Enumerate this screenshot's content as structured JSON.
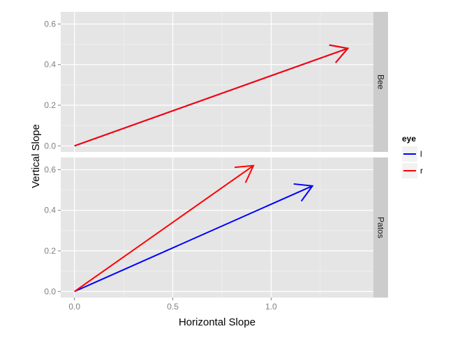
{
  "chart_data": {
    "type": "line",
    "subtype": "vector-arrows",
    "xlabel": "Horizontal Slope",
    "ylabel": "Vertical Slope",
    "xlim": [
      -0.07,
      1.52
    ],
    "ylim": [
      -0.03,
      0.66
    ],
    "x_ticks": [
      0.0,
      0.5,
      1.0
    ],
    "x_tick_labels": [
      "0.0",
      "0.5",
      "1.0"
    ],
    "y_ticks": [
      0.0,
      0.2,
      0.4,
      0.6
    ],
    "y_tick_labels": [
      "0.0",
      "0.2",
      "0.4",
      "0.6"
    ],
    "grid": true,
    "legend": {
      "title": "eye",
      "placement": "right",
      "entries": [
        {
          "label": "l",
          "color": "#0000ff"
        },
        {
          "label": "r",
          "color": "#ff0000"
        }
      ]
    },
    "facets": [
      {
        "strip_label": "Bee",
        "arrows": [
          {
            "eye": "l",
            "x0": 0.0,
            "y0": 0.0,
            "x1": 1.39,
            "y1": 0.48
          },
          {
            "eye": "r",
            "x0": 0.0,
            "y0": 0.0,
            "x1": 1.39,
            "y1": 0.48
          }
        ]
      },
      {
        "strip_label": "Patos",
        "arrows": [
          {
            "eye": "l",
            "x0": 0.0,
            "y0": 0.0,
            "x1": 1.21,
            "y1": 0.52
          },
          {
            "eye": "r",
            "x0": 0.0,
            "y0": 0.0,
            "x1": 0.91,
            "y1": 0.62
          }
        ]
      }
    ]
  },
  "colors": {
    "panel_bg": "#e5e5e5",
    "grid_major": "#ffffff",
    "strip_bg": "#cccccc",
    "tick_text": "#7f7f7f"
  }
}
